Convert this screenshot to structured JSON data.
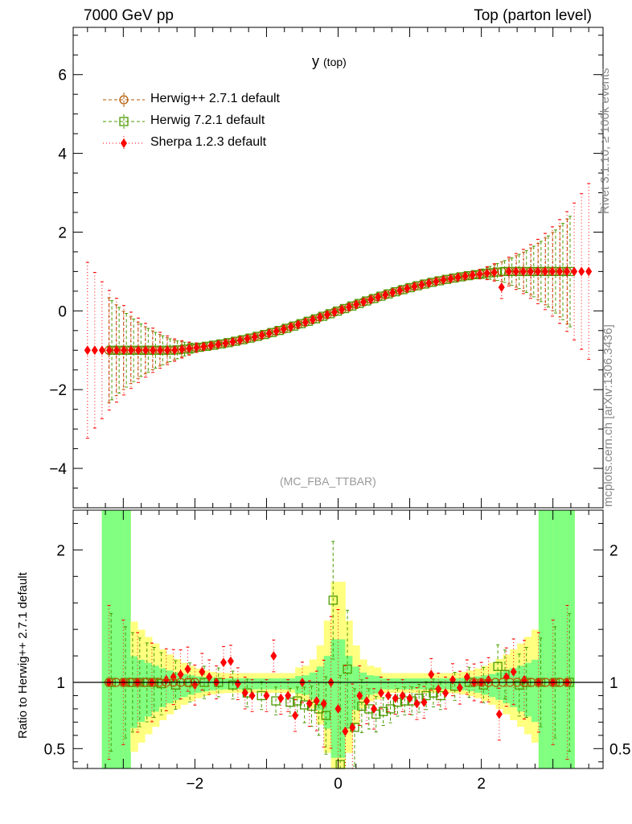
{
  "header": {
    "left": "7000 GeV pp",
    "right": "Top (parton level)"
  },
  "side_labels": {
    "rivet": "Rivet 3.1.10, ≥ 100k events",
    "source": "mcplots.cern.ch [arXiv:1306.3436]"
  },
  "chart_data": [
    {
      "type": "scatter",
      "panel": "main",
      "title": "y (top)",
      "title_main": "y",
      "title_sub": "(top)",
      "annotation": "(MC_FBA_TTBAR)",
      "xlabel": "",
      "ylabel": "",
      "xlim": [
        -3.7,
        3.7
      ],
      "ylim": [
        -5.0,
        7.2
      ],
      "y_ticks": [
        -4,
        -2,
        0,
        2,
        4,
        6
      ],
      "y_tick_labels": [
        "−4",
        "−2",
        "0",
        "2",
        "4",
        "6"
      ],
      "legend": [
        {
          "name": "Herwig++ 2.7.1 default",
          "color": "#b35900",
          "marker": "circle-open",
          "line": "dashed"
        },
        {
          "name": "Herwig 7.2.1 default",
          "color": "#4a9a00",
          "marker": "square-open",
          "line": "dashed"
        },
        {
          "name": "Sherpa 1.2.3 default",
          "color": "#ff0000",
          "marker": "diamond-filled",
          "line": "dotted"
        }
      ],
      "series": [
        {
          "name": "Herwig++ 2.7.1 default",
          "x_range": [
            -3.2,
            3.2
          ],
          "n": 64,
          "value_form": "tanh-like, -1 to +1"
        },
        {
          "name": "Herwig 7.2.1 default",
          "x_range": [
            -3.2,
            3.2
          ],
          "n": 64,
          "value_form": "tanh-like, -1 to +1"
        },
        {
          "name": "Sherpa 1.2.3 default",
          "x_range": [
            -3.5,
            3.5
          ],
          "n": 70,
          "value_form": "tanh-like, -1 to +1",
          "outlier": {
            "x": 2.25,
            "y": 0.6
          }
        }
      ],
      "errors": {
        "edge_bars_y": [
          -2.4,
          2.4
        ],
        "sherpa_edge_bars_y": [
          -2.4,
          0.4
        ]
      }
    },
    {
      "type": "scatter",
      "panel": "ratio",
      "xlabel": "",
      "ylabel": "Ratio to Herwig++ 2.7.1 default",
      "xlim": [
        -3.7,
        3.7
      ],
      "ylim": [
        0.35,
        2.3
      ],
      "x_ticks": [
        -2,
        0,
        2
      ],
      "x_tick_labels": [
        "−2",
        "0",
        "2"
      ],
      "y_ticks": [
        0.5,
        1,
        2
      ],
      "y_tick_labels": [
        "0.5",
        "1",
        "2"
      ],
      "reference": 1.0,
      "herwig7_ratio": [
        [
          -3.2,
          1.0
        ],
        [
          -3.0,
          1.0
        ],
        [
          -2.9,
          1.0
        ],
        [
          -2.8,
          1.0
        ],
        [
          -2.7,
          1.0
        ],
        [
          -2.6,
          1.0
        ],
        [
          -2.5,
          0.99
        ],
        [
          -2.3,
          0.98
        ],
        [
          -2.1,
          1.0
        ],
        [
          -1.9,
          1.0
        ],
        [
          -1.7,
          1.0
        ],
        [
          -1.5,
          0.98
        ],
        [
          -1.3,
          0.92
        ],
        [
          -1.1,
          0.9
        ],
        [
          -0.9,
          0.86
        ],
        [
          -0.7,
          0.85
        ],
        [
          -0.6,
          0.86
        ],
        [
          -0.5,
          0.83
        ],
        [
          -0.4,
          0.82
        ],
        [
          -0.3,
          0.8
        ],
        [
          -0.2,
          0.75
        ],
        [
          -0.1,
          1.62
        ],
        [
          0.0,
          0.38
        ],
        [
          0.1,
          1.1
        ],
        [
          0.2,
          0.66
        ],
        [
          0.3,
          0.82
        ],
        [
          0.4,
          0.8
        ],
        [
          0.5,
          0.76
        ],
        [
          0.6,
          0.78
        ],
        [
          0.7,
          0.8
        ],
        [
          0.8,
          0.85
        ],
        [
          0.9,
          0.86
        ],
        [
          1.0,
          0.86
        ],
        [
          1.1,
          0.88
        ],
        [
          1.2,
          0.9
        ],
        [
          1.3,
          0.92
        ],
        [
          1.4,
          0.9
        ],
        [
          1.6,
          0.97
        ],
        [
          1.8,
          1.0
        ],
        [
          2.0,
          0.98
        ],
        [
          2.2,
          1.12
        ],
        [
          2.3,
          1.06
        ],
        [
          2.5,
          0.98
        ],
        [
          2.6,
          1.0
        ],
        [
          2.8,
          1.0
        ],
        [
          3.0,
          1.0
        ],
        [
          3.2,
          1.0
        ]
      ],
      "sherpa_ratio": [
        [
          -3.2,
          1.0
        ],
        [
          -3.0,
          1.0
        ],
        [
          -2.8,
          1.0
        ],
        [
          -2.6,
          1.0
        ],
        [
          -2.4,
          1.02
        ],
        [
          -2.3,
          1.04
        ],
        [
          -2.2,
          1.06
        ],
        [
          -2.1,
          1.1
        ],
        [
          -2.0,
          0.98
        ],
        [
          -1.9,
          1.08
        ],
        [
          -1.8,
          1.04
        ],
        [
          -1.7,
          1.0
        ],
        [
          -1.6,
          1.15
        ],
        [
          -1.5,
          1.16
        ],
        [
          -1.4,
          0.99
        ],
        [
          -1.3,
          0.92
        ],
        [
          -1.2,
          0.9
        ],
        [
          -1.0,
          0.9
        ],
        [
          -0.9,
          1.2
        ],
        [
          -0.8,
          0.88
        ],
        [
          -0.7,
          0.9
        ],
        [
          -0.6,
          0.75
        ],
        [
          -0.5,
          1.0
        ],
        [
          -0.4,
          0.84
        ],
        [
          -0.3,
          0.86
        ],
        [
          -0.2,
          0.84
        ],
        [
          -0.1,
          1.0
        ],
        [
          0.0,
          0.8
        ],
        [
          0.1,
          0.63
        ],
        [
          0.2,
          0.66
        ],
        [
          0.3,
          0.9
        ],
        [
          0.4,
          0.86
        ],
        [
          0.5,
          0.8
        ],
        [
          0.6,
          0.92
        ],
        [
          0.7,
          0.9
        ],
        [
          0.8,
          0.88
        ],
        [
          0.9,
          0.9
        ],
        [
          1.0,
          0.88
        ],
        [
          1.1,
          0.84
        ],
        [
          1.2,
          0.85
        ],
        [
          1.3,
          1.06
        ],
        [
          1.4,
          0.95
        ],
        [
          1.5,
          0.92
        ],
        [
          1.6,
          1.02
        ],
        [
          1.7,
          0.96
        ],
        [
          1.8,
          1.04
        ],
        [
          1.9,
          1.0
        ],
        [
          2.0,
          1.0
        ],
        [
          2.1,
          1.02
        ],
        [
          2.25,
          0.76
        ],
        [
          2.35,
          1.04
        ],
        [
          2.45,
          1.08
        ],
        [
          2.6,
          1.02
        ],
        [
          2.8,
          1.0
        ],
        [
          3.0,
          1.0
        ],
        [
          3.2,
          1.0
        ]
      ]
    }
  ]
}
